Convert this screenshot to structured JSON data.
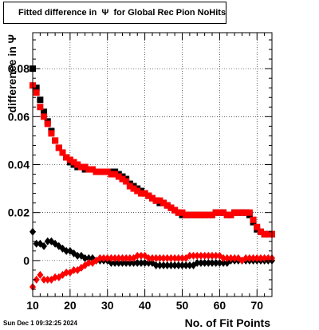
{
  "chart_data": {
    "type": "scatter",
    "title": "Fitted difference in  Ψ  for Global Rec Pion NoHits",
    "xlabel": "No. of Fit Points",
    "ylabel": "difference in  Ψ",
    "xlim": [
      10,
      74
    ],
    "ylim": [
      -0.015,
      0.095
    ],
    "x_ticks": [
      10,
      20,
      30,
      40,
      50,
      60,
      70
    ],
    "y_ticks": [
      0,
      0.02,
      0.04,
      0.06,
      0.08
    ],
    "y_tick_labels": [
      "0",
      "0.02",
      "0.04",
      "0.06",
      "0.08"
    ],
    "grid": true,
    "timestamp": "Sun Dec  1 09:32:25 2024",
    "series": [
      {
        "color": "#000000",
        "marker": "square",
        "x": [
          10,
          11,
          12,
          13,
          14,
          15,
          16,
          17,
          18,
          19,
          20,
          21,
          22,
          23,
          24,
          25,
          26,
          27,
          28,
          29,
          30,
          31,
          32,
          33,
          34,
          35,
          36,
          37,
          38,
          39,
          40,
          41,
          42,
          43,
          44,
          45,
          46,
          47,
          48,
          49,
          50,
          51,
          52,
          53,
          54,
          55,
          56,
          57,
          58,
          59,
          60,
          61,
          62,
          63,
          64,
          65,
          66,
          67,
          68,
          69,
          70,
          71,
          72,
          73,
          74
        ],
        "y": [
          0.08,
          0.072,
          0.067,
          0.062,
          0.058,
          0.054,
          0.05,
          0.047,
          0.045,
          0.043,
          0.041,
          0.04,
          0.039,
          0.039,
          0.038,
          0.038,
          0.038,
          0.037,
          0.037,
          0.037,
          0.037,
          0.037,
          0.037,
          0.036,
          0.035,
          0.034,
          0.032,
          0.031,
          0.03,
          0.029,
          0.028,
          0.027,
          0.026,
          0.025,
          0.024,
          0.024,
          0.023,
          0.022,
          0.021,
          0.02,
          0.019,
          0.019,
          0.019,
          0.019,
          0.019,
          0.019,
          0.019,
          0.019,
          0.019,
          0.02,
          0.02,
          0.02,
          0.019,
          0.019,
          0.02,
          0.02,
          0.02,
          0.02,
          0.019,
          0.016,
          0.013,
          0.012,
          0.011,
          0.011,
          0.011
        ]
      },
      {
        "color": "#ff0000",
        "marker": "square",
        "x": [
          10,
          11,
          12,
          13,
          14,
          15,
          16,
          17,
          18,
          19,
          20,
          21,
          22,
          23,
          24,
          25,
          26,
          27,
          28,
          29,
          30,
          31,
          32,
          33,
          34,
          35,
          36,
          37,
          38,
          39,
          40,
          41,
          42,
          43,
          44,
          45,
          46,
          47,
          48,
          49,
          50,
          51,
          52,
          53,
          54,
          55,
          56,
          57,
          58,
          59,
          60,
          61,
          62,
          63,
          64,
          65,
          66,
          67,
          68,
          69,
          70,
          71,
          72,
          73,
          74
        ],
        "y": [
          0.073,
          0.07,
          0.064,
          0.06,
          0.057,
          0.053,
          0.05,
          0.047,
          0.045,
          0.043,
          0.042,
          0.041,
          0.04,
          0.039,
          0.039,
          0.038,
          0.038,
          0.037,
          0.037,
          0.037,
          0.037,
          0.036,
          0.036,
          0.035,
          0.034,
          0.033,
          0.031,
          0.03,
          0.029,
          0.028,
          0.028,
          0.027,
          0.026,
          0.025,
          0.025,
          0.024,
          0.023,
          0.022,
          0.021,
          0.02,
          0.02,
          0.019,
          0.019,
          0.019,
          0.019,
          0.019,
          0.019,
          0.019,
          0.019,
          0.02,
          0.02,
          0.02,
          0.019,
          0.019,
          0.02,
          0.02,
          0.02,
          0.02,
          0.02,
          0.017,
          0.014,
          0.012,
          0.011,
          0.011,
          0.011
        ]
      },
      {
        "color": "#000000",
        "marker": "diamond",
        "x": [
          10,
          11,
          12,
          13,
          14,
          15,
          16,
          17,
          18,
          19,
          20,
          21,
          22,
          23,
          24,
          25,
          26,
          27,
          28,
          29,
          30,
          31,
          32,
          33,
          34,
          35,
          36,
          37,
          38,
          39,
          40,
          41,
          42,
          43,
          44,
          45,
          46,
          47,
          48,
          49,
          50,
          51,
          52,
          53,
          54,
          55,
          56,
          57,
          58,
          59,
          60,
          61,
          62,
          63,
          64,
          65,
          66,
          67,
          68,
          69,
          70,
          71,
          72,
          73,
          74
        ],
        "y": [
          0.012,
          0.007,
          0.007,
          0.006,
          0.008,
          0.008,
          0.007,
          0.006,
          0.005,
          0.004,
          0.004,
          0.003,
          0.002,
          0.002,
          0.001,
          0.001,
          0.001,
          0.0,
          0.0,
          0.0,
          0.0,
          -0.001,
          -0.001,
          -0.001,
          -0.001,
          -0.001,
          -0.001,
          -0.001,
          -0.001,
          -0.001,
          -0.001,
          -0.001,
          -0.001,
          -0.002,
          -0.002,
          -0.002,
          -0.002,
          -0.002,
          -0.002,
          -0.002,
          -0.002,
          -0.002,
          -0.002,
          -0.002,
          -0.001,
          -0.001,
          -0.001,
          -0.001,
          -0.001,
          -0.001,
          -0.001,
          -0.001,
          -0.001,
          0.0,
          0.0,
          0.0,
          0.0,
          0.0,
          0.0,
          0.0,
          0.0,
          0.0,
          0.0,
          0.0,
          0.0
        ]
      },
      {
        "color": "#ff0000",
        "marker": "diamond",
        "x": [
          10,
          11,
          12,
          13,
          14,
          15,
          16,
          17,
          18,
          19,
          20,
          21,
          22,
          23,
          24,
          25,
          26,
          27,
          28,
          29,
          30,
          31,
          32,
          33,
          34,
          35,
          36,
          37,
          38,
          39,
          40,
          41,
          42,
          43,
          44,
          45,
          46,
          47,
          48,
          49,
          50,
          51,
          52,
          53,
          54,
          55,
          56,
          57,
          58,
          59,
          60,
          61,
          62,
          63,
          64,
          65,
          66,
          67,
          68,
          69,
          70,
          71,
          72,
          73,
          74
        ],
        "y": [
          -0.011,
          -0.008,
          -0.006,
          -0.008,
          -0.008,
          -0.008,
          -0.007,
          -0.007,
          -0.006,
          -0.005,
          -0.005,
          -0.004,
          -0.004,
          -0.003,
          -0.002,
          -0.001,
          -0.001,
          0.0,
          0.001,
          0.001,
          0.001,
          0.001,
          0.001,
          0.001,
          0.001,
          0.001,
          0.001,
          0.001,
          0.002,
          0.002,
          0.002,
          0.001,
          0.001,
          0.001,
          0.001,
          0.001,
          0.001,
          0.001,
          0.001,
          0.001,
          0.001,
          0.001,
          0.002,
          0.002,
          0.002,
          0.002,
          0.002,
          0.002,
          0.002,
          0.002,
          0.002,
          0.001,
          0.001,
          0.001,
          0.001,
          0.001,
          0.0,
          0.001,
          0.001,
          0.001,
          0.001,
          0.001,
          0.001,
          0.001,
          0.001
        ]
      }
    ]
  }
}
